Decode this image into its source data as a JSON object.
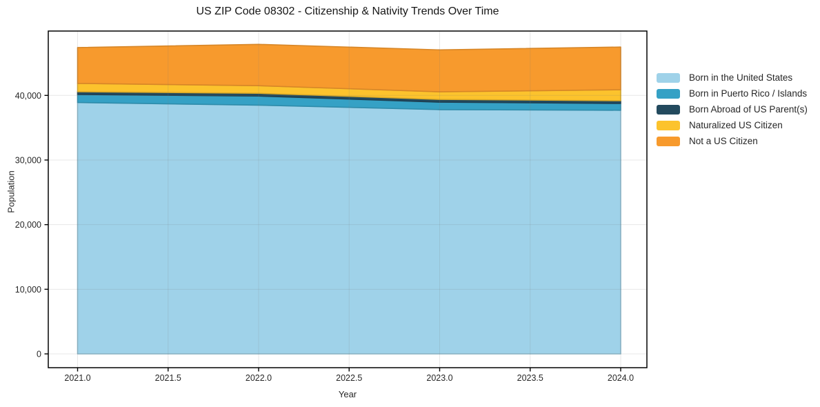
{
  "chart_data": {
    "type": "area",
    "stacked": true,
    "title": "US ZIP Code 08302 - Citizenship & Nativity Trends Over Time",
    "xlabel": "Year",
    "ylabel": "Population",
    "x": [
      2021,
      2022,
      2023,
      2024
    ],
    "series": [
      {
        "name": "Born in the United States",
        "color": "#9fd2e9",
        "values": [
          38900,
          38500,
          37800,
          37700
        ]
      },
      {
        "name": "Born in Puerto Rico / Islands",
        "color": "#35a1c5",
        "values": [
          1250,
          1400,
          1150,
          1050
        ]
      },
      {
        "name": "Born Abroad of US Parent(s)",
        "color": "#234a5e",
        "values": [
          430,
          430,
          430,
          430
        ]
      },
      {
        "name": "Naturalized US Citizen",
        "color": "#fcc32d",
        "values": [
          1280,
          1170,
          1170,
          1700
        ]
      },
      {
        "name": "Not a US Citizen",
        "color": "#f79a2d",
        "values": [
          5550,
          6400,
          6500,
          6600
        ]
      }
    ],
    "stack_totals": [
      47410,
      47900,
      47050,
      47480
    ],
    "xticks": {
      "values": [
        2021.0,
        2021.5,
        2022.0,
        2022.5,
        2023.0,
        2023.5,
        2024.0
      ],
      "labels": [
        "2021.0",
        "2021.5",
        "2022.0",
        "2022.5",
        "2023.0",
        "2023.5",
        "2024.0"
      ]
    },
    "yticks": {
      "values": [
        0,
        10000,
        20000,
        30000,
        40000
      ],
      "labels": [
        "0",
        "10,000",
        "20,000",
        "30,000",
        "40,000"
      ]
    },
    "xlim": [
      2020.84,
      2024.14
    ],
    "ylim": [
      -2100,
      50100
    ],
    "grid": true,
    "legend_position": "outside-right",
    "colors": {
      "grid": "rgba(120,120,120,0.18)",
      "spine": "#000000",
      "tick_text": "#262626",
      "background": "#ffffff"
    }
  }
}
